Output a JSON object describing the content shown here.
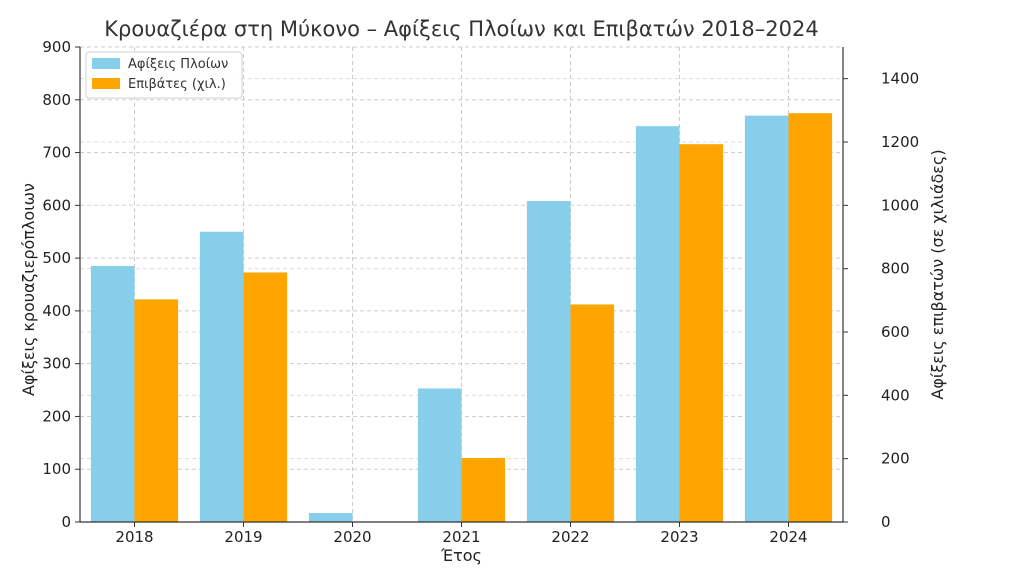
{
  "chart_data": {
    "type": "bar",
    "title": "Κρουαζιέρα στη Μύκονο – Αφίξεις Πλοίων και Επιβατών 2018–2024",
    "xlabel": "Έτος",
    "ylabel_left": "Αφίξεις κρουαζιερόπλοιων",
    "ylabel_right": "Αφίξεις επιβατών (σε χιλιάδες)",
    "categories": [
      "2018",
      "2019",
      "2020",
      "2021",
      "2022",
      "2023",
      "2024"
    ],
    "y_left_lim": [
      0,
      900
    ],
    "y_left_ticks": [
      0,
      100,
      200,
      300,
      400,
      500,
      600,
      700,
      800,
      900
    ],
    "y_right_lim": [
      0,
      1500
    ],
    "y_right_ticks": [
      0,
      200,
      400,
      600,
      800,
      1000,
      1200,
      1400
    ],
    "grid": true,
    "legend_position": "top-left",
    "series": [
      {
        "name": "Αφίξεις Πλοίων",
        "axis": "left",
        "color": "#87ceeb",
        "values": [
          485,
          550,
          17,
          253,
          608,
          750,
          770
        ]
      },
      {
        "name": "Επιβάτες (χιλ.)",
        "axis": "right",
        "color": "#ffa500",
        "values": [
          703,
          788,
          0,
          202,
          687,
          1193,
          1291
        ]
      }
    ]
  }
}
